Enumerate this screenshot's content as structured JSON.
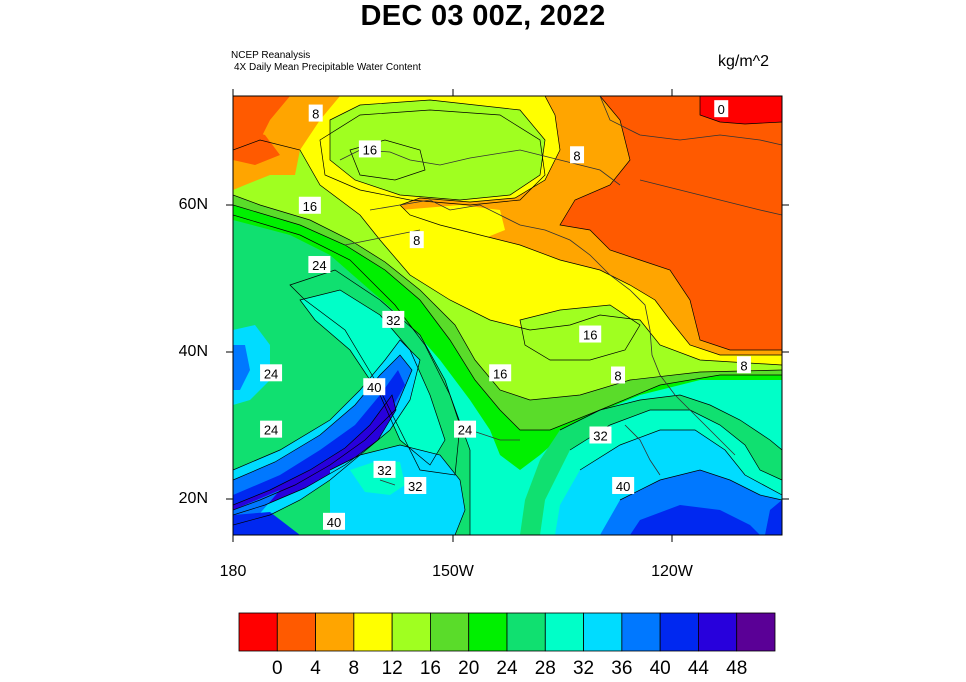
{
  "header": {
    "title": "DEC 03 00Z, 2022",
    "source_line1": "NCEP Reanalysis",
    "source_line2": "4X Daily Mean  Precipitable Water Content",
    "units": "kg/m^2"
  },
  "axes": {
    "lat_ticks": [
      "60N",
      "40N",
      "20N"
    ],
    "lon_ticks": [
      "180",
      "150W",
      "120W"
    ]
  },
  "map": {
    "extent": {
      "lon_min": -180,
      "lon_max": -105,
      "lat_min": 15,
      "lat_max": 75
    },
    "contour_labels": [
      {
        "text": "8",
        "lon": -168.7,
        "lat": 72.6
      },
      {
        "text": "16",
        "lon": -161.3,
        "lat": 67.7
      },
      {
        "text": "8",
        "lon": -133.0,
        "lat": 66.9
      },
      {
        "text": "0",
        "lon": -113.3,
        "lat": 73.2
      },
      {
        "text": "16",
        "lon": -169.5,
        "lat": 60.0
      },
      {
        "text": "8",
        "lon": -154.9,
        "lat": 55.3
      },
      {
        "text": "24",
        "lon": -168.2,
        "lat": 51.9
      },
      {
        "text": "32",
        "lon": -158.1,
        "lat": 44.4
      },
      {
        "text": "16",
        "lon": -131.2,
        "lat": 42.4
      },
      {
        "text": "24",
        "lon": -174.8,
        "lat": 37.1
      },
      {
        "text": "40",
        "lon": -160.7,
        "lat": 35.2
      },
      {
        "text": "16",
        "lon": -143.5,
        "lat": 37.1
      },
      {
        "text": "8",
        "lon": -127.4,
        "lat": 36.8
      },
      {
        "text": "8",
        "lon": -110.2,
        "lat": 38.2
      },
      {
        "text": "24",
        "lon": -174.8,
        "lat": 29.4
      },
      {
        "text": "24",
        "lon": -148.3,
        "lat": 29.4
      },
      {
        "text": "32",
        "lon": -129.8,
        "lat": 28.6
      },
      {
        "text": "32",
        "lon": -159.3,
        "lat": 23.9
      },
      {
        "text": "32",
        "lon": -155.1,
        "lat": 21.7
      },
      {
        "text": "40",
        "lon": -126.7,
        "lat": 21.7
      },
      {
        "text": "40",
        "lon": -166.2,
        "lat": 16.8
      }
    ]
  },
  "colorbar": {
    "labels": [
      "0",
      "4",
      "8",
      "12",
      "16",
      "20",
      "24",
      "28",
      "32",
      "36",
      "40",
      "44",
      "48"
    ],
    "colors": [
      "#ff0000",
      "#ff5a00",
      "#ffa500",
      "#ffff00",
      "#a0ff20",
      "#5adc2a",
      "#00f000",
      "#10e070",
      "#00ffc8",
      "#00dcff",
      "#0078ff",
      "#0028f0",
      "#2800dc",
      "#5a0096"
    ]
  }
}
